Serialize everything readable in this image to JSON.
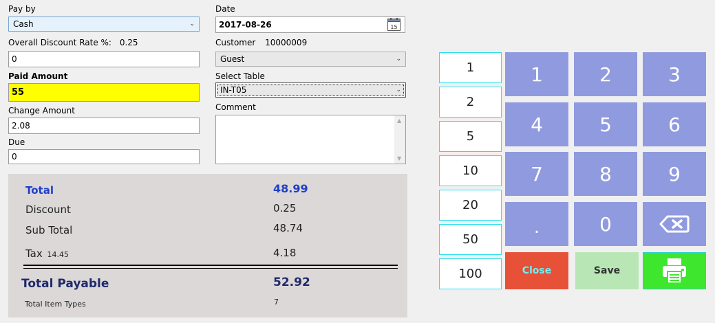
{
  "form": {
    "pay_by_label": "Pay by",
    "pay_by_value": "Cash",
    "date_label": "Date",
    "date_value": "2017-08-26",
    "calendar_day": "15",
    "discount_rate_label": "Overall Discount Rate %:",
    "discount_rate_value": "0.25",
    "discount_input": "0",
    "customer_label": "Customer",
    "customer_id": "10000009",
    "customer_select": "Guest",
    "paid_amount_label": "Paid Amount",
    "paid_amount_value": "55",
    "select_table_label": "Select Table",
    "select_table_value": "IN-T05",
    "change_amount_label": "Change Amount",
    "change_amount_value": "2.08",
    "comment_label": "Comment",
    "comment_value": "",
    "due_label": "Due",
    "due_value": "0"
  },
  "summary": {
    "total_label": "Total",
    "total_value": "48.99",
    "discount_label": "Discount",
    "discount_value": "0.25",
    "subtotal_label": "Sub Total",
    "subtotal_value": "48.74",
    "tax_label": "Tax",
    "tax_rate": "14.45",
    "tax_value": "4.18",
    "total_payable_label": "Total Payable",
    "total_payable_value": "52.92",
    "item_types_label": "Total Item Types",
    "item_types_value": "7"
  },
  "quick_amounts": [
    "1",
    "2",
    "5",
    "10",
    "20",
    "50",
    "100"
  ],
  "keypad": [
    "1",
    "2",
    "3",
    "4",
    "5",
    "6",
    "7",
    "8",
    "9",
    ".",
    "0"
  ],
  "actions": {
    "close_label": "Close",
    "save_label": "Save"
  },
  "colors": {
    "paid_highlight": "#ffff00",
    "total_blue": "#1f3fc8",
    "payable_navy": "#1f2a6b",
    "keypad": "#8f9adf",
    "close": "#e65138",
    "save": "#b8e6b5",
    "print": "#3ee62e"
  },
  "icons": {
    "backspace": "backspace-icon",
    "print": "printer-icon",
    "calendar": "calendar-icon"
  }
}
